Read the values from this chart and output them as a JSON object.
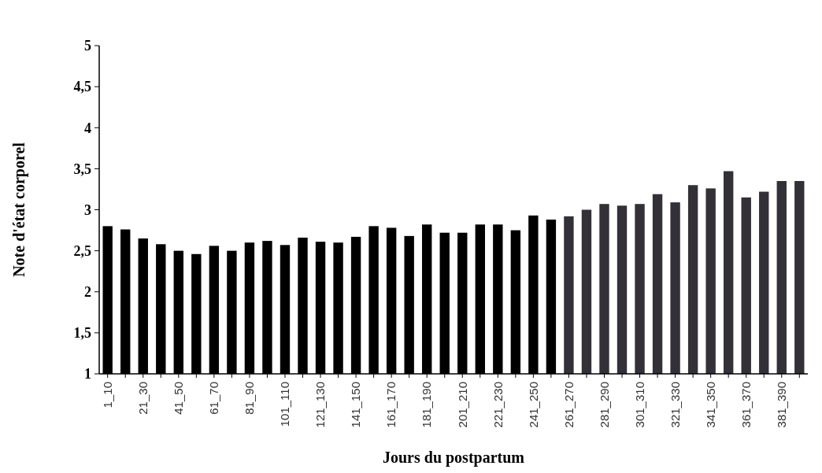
{
  "chart_data": {
    "type": "bar",
    "xlabel": "Jours du postpartum",
    "ylabel": "Note d'état corporel",
    "categories": [
      "1_10",
      null,
      "21_30",
      null,
      "41_50",
      null,
      "61_70",
      null,
      "81_90",
      null,
      "101_110",
      null,
      "121_130",
      null,
      "141_150",
      null,
      "161_170",
      null,
      "181_190",
      null,
      "201_210",
      null,
      "221_230",
      null,
      "241_250",
      null,
      "261_270",
      null,
      "281_290",
      null,
      "301_310",
      null,
      "321_330",
      null,
      "341_350",
      null,
      "361_370",
      null,
      "381_390",
      null
    ],
    "values": [
      2.8,
      2.76,
      2.65,
      2.58,
      2.5,
      2.46,
      2.56,
      2.5,
      2.6,
      2.62,
      2.57,
      2.66,
      2.61,
      2.6,
      2.67,
      2.8,
      2.78,
      2.68,
      2.82,
      2.72,
      2.72,
      2.82,
      2.82,
      2.75,
      2.93,
      2.88,
      2.92,
      3.0,
      3.07,
      3.05,
      3.07,
      3.19,
      3.09,
      3.3,
      3.26,
      3.47,
      3.15,
      3.22,
      3.35,
      3.35
    ],
    "colors": [
      "#000000",
      "#000000",
      "#000000",
      "#000000",
      "#000000",
      "#000000",
      "#000000",
      "#000000",
      "#000000",
      "#000000",
      "#000000",
      "#000000",
      "#000000",
      "#000000",
      "#000000",
      "#000000",
      "#000000",
      "#000000",
      "#000000",
      "#000000",
      "#000000",
      "#000000",
      "#000000",
      "#000000",
      "#000000",
      "#000000",
      "#333038",
      "#333038",
      "#333038",
      "#333038",
      "#333038",
      "#333038",
      "#333038",
      "#333038",
      "#333038",
      "#333038",
      "#333038",
      "#333038",
      "#333038",
      "#333038"
    ],
    "ylim": [
      1,
      5
    ],
    "yticks": [
      1,
      {
        "value": 1.5,
        "label": "1,5"
      },
      2,
      {
        "value": 2.5,
        "label": "2,5"
      },
      3,
      {
        "value": 3.5,
        "label": "3,5"
      },
      4,
      {
        "value": 4.5,
        "label": "4,5"
      },
      5
    ],
    "grid": false
  }
}
